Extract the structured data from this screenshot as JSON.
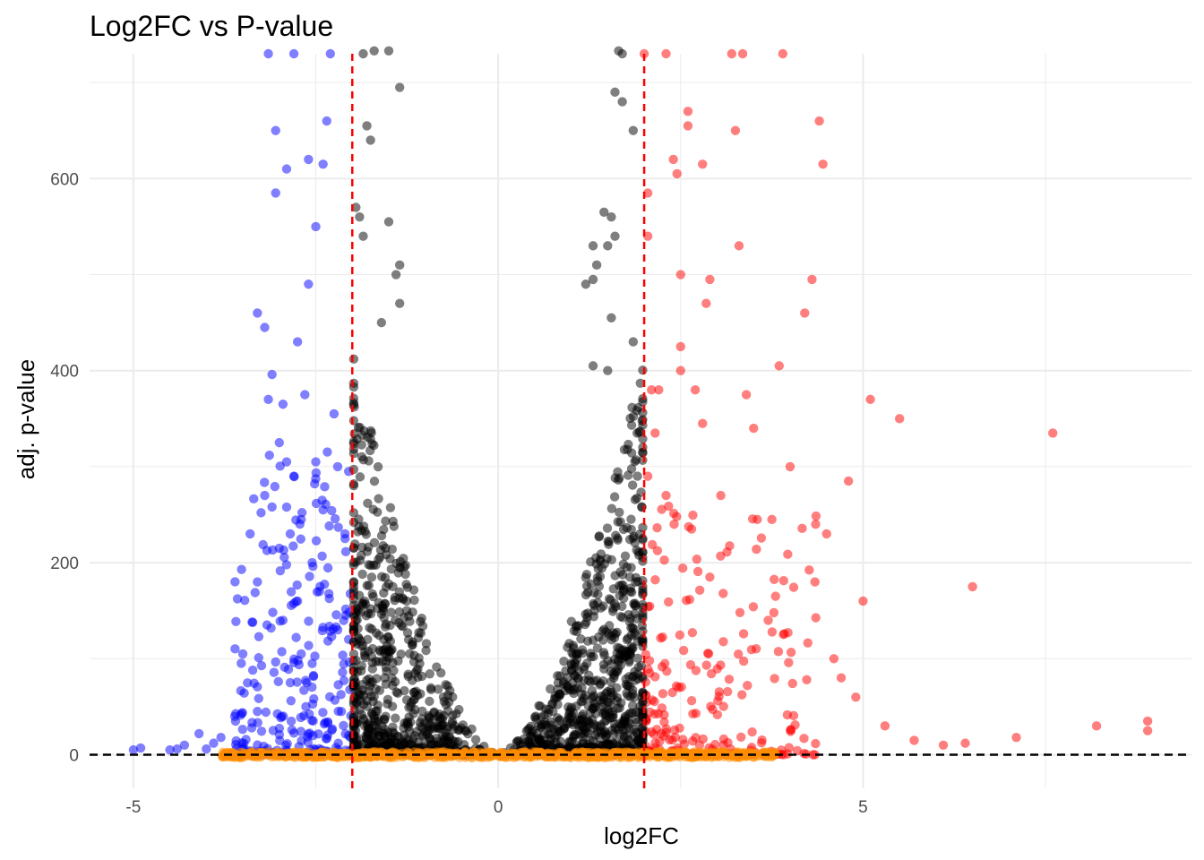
{
  "chart_data": {
    "type": "scatter",
    "title": "Log2FC vs P-value",
    "xlabel": "log2FC",
    "ylabel": "adj. p-value",
    "xlim": [
      -5.6,
      9.5
    ],
    "ylim": [
      -35,
      730
    ],
    "x_ticks": [
      -5,
      0,
      5
    ],
    "x_tick_labels": [
      "-5",
      "0",
      "5"
    ],
    "y_ticks": [
      0,
      200,
      400,
      600
    ],
    "y_tick_labels": [
      "0",
      "200",
      "400",
      "600"
    ],
    "grid": true,
    "legend": "none",
    "reference_lines": {
      "vertical_dashed_red": [
        -2,
        2
      ],
      "horizontal_dashed_black": 0
    },
    "colors": {
      "down_regulated": "#0000ff",
      "up_regulated": "#ff0000",
      "not_significant": "#000000",
      "low_pvalue": "#ff8c00",
      "threshold_line": "#ff0000",
      "zero_line": "#000000",
      "grid": "#ebebeb"
    },
    "series": [
      {
        "color_key": "down_regulated",
        "points": [
          [
            -5.0,
            5
          ],
          [
            -4.9,
            7
          ],
          [
            -4.5,
            5
          ],
          [
            -4.4,
            6
          ],
          [
            -4.3,
            10
          ],
          [
            -4.1,
            22
          ],
          [
            -4.0,
            6
          ],
          [
            -3.9,
            12
          ],
          [
            -3.8,
            18
          ],
          [
            -3.6,
            35
          ],
          [
            -3.5,
            8
          ],
          [
            -3.5,
            105
          ],
          [
            -3.4,
            230
          ],
          [
            -3.3,
            45
          ],
          [
            -3.3,
            180
          ],
          [
            -3.3,
            460
          ],
          [
            -3.25,
            252
          ],
          [
            -3.2,
            270
          ],
          [
            -3.2,
            445
          ],
          [
            -3.15,
            370
          ],
          [
            -3.15,
            730
          ],
          [
            -3.1,
            258
          ],
          [
            -3.1,
            396
          ],
          [
            -3.05,
            585
          ],
          [
            -3.05,
            650
          ],
          [
            -3.0,
            325
          ],
          [
            -3.0,
            215
          ],
          [
            -2.95,
            140
          ],
          [
            -2.95,
            365
          ],
          [
            -2.9,
            305
          ],
          [
            -2.9,
            610
          ],
          [
            -2.85,
            230
          ],
          [
            -2.85,
            75
          ],
          [
            -2.8,
            730
          ],
          [
            -2.8,
            290
          ],
          [
            -2.75,
            430
          ],
          [
            -2.75,
            160
          ],
          [
            -2.7,
            245
          ],
          [
            -2.7,
            105
          ],
          [
            -2.65,
            375
          ],
          [
            -2.6,
            490
          ],
          [
            -2.6,
            620
          ],
          [
            -2.55,
            95
          ],
          [
            -2.55,
            200
          ],
          [
            -2.5,
            550
          ],
          [
            -2.5,
            305
          ],
          [
            -2.45,
            170
          ],
          [
            -2.4,
            615
          ],
          [
            -2.4,
            255
          ],
          [
            -2.35,
            660
          ],
          [
            -2.3,
            730
          ],
          [
            -2.25,
            355
          ],
          [
            -2.2,
            300
          ],
          [
            -2.2,
            130
          ],
          [
            -2.15,
            45
          ],
          [
            -2.1,
            230
          ],
          [
            -2.05,
            295
          ],
          [
            -2.05,
            120
          ],
          [
            -2.05,
            20
          ]
        ],
        "jitter_count": 260
      },
      {
        "color_key": "up_regulated",
        "points": [
          [
            2.0,
            730
          ],
          [
            2.05,
            585
          ],
          [
            2.05,
            290
          ],
          [
            2.05,
            540
          ],
          [
            2.1,
            380
          ],
          [
            2.15,
            335
          ],
          [
            2.2,
            380
          ],
          [
            2.3,
            730
          ],
          [
            2.3,
            270
          ],
          [
            2.4,
            620
          ],
          [
            2.45,
            605
          ],
          [
            2.5,
            425
          ],
          [
            2.5,
            400
          ],
          [
            2.5,
            500
          ],
          [
            2.6,
            670
          ],
          [
            2.6,
            655
          ],
          [
            2.65,
            235
          ],
          [
            2.7,
            380
          ],
          [
            2.8,
            615
          ],
          [
            2.8,
            345
          ],
          [
            2.85,
            470
          ],
          [
            2.9,
            495
          ],
          [
            2.9,
            185
          ],
          [
            3.05,
            270
          ],
          [
            3.2,
            730
          ],
          [
            3.25,
            650
          ],
          [
            3.3,
            530
          ],
          [
            3.35,
            730
          ],
          [
            3.4,
            375
          ],
          [
            3.5,
            340
          ],
          [
            3.55,
            245
          ],
          [
            3.7,
            140
          ],
          [
            3.75,
            245
          ],
          [
            3.8,
            165
          ],
          [
            3.85,
            405
          ],
          [
            3.9,
            730
          ],
          [
            4.0,
            300
          ],
          [
            4.2,
            460
          ],
          [
            4.3,
            495
          ],
          [
            4.35,
            240
          ],
          [
            4.4,
            660
          ],
          [
            4.45,
            615
          ],
          [
            4.5,
            230
          ],
          [
            4.6,
            100
          ],
          [
            4.7,
            80
          ],
          [
            4.8,
            285
          ],
          [
            4.9,
            60
          ],
          [
            5.0,
            160
          ],
          [
            5.1,
            370
          ],
          [
            5.3,
            30
          ],
          [
            5.5,
            350
          ],
          [
            5.7,
            15
          ],
          [
            6.1,
            10
          ],
          [
            6.4,
            12
          ],
          [
            6.5,
            175
          ],
          [
            7.1,
            18
          ],
          [
            7.6,
            335
          ],
          [
            8.2,
            30
          ],
          [
            8.9,
            35
          ],
          [
            8.9,
            25
          ]
        ],
        "jitter_count": 230
      },
      {
        "color_key": "not_significant",
        "points": [
          [
            -1.95,
            570
          ],
          [
            -1.9,
            560
          ],
          [
            -1.85,
            540
          ],
          [
            -1.85,
            730
          ],
          [
            -1.8,
            655
          ],
          [
            -1.75,
            640
          ],
          [
            -1.6,
            450
          ],
          [
            -1.5,
            555
          ],
          [
            -1.4,
            500
          ],
          [
            -1.35,
            510
          ],
          [
            -1.35,
            470
          ],
          [
            -1.35,
            695
          ],
          [
            -1.5,
            735
          ],
          [
            -1.7,
            735
          ],
          [
            1.65,
            735
          ],
          [
            1.7,
            730
          ],
          [
            1.6,
            690
          ],
          [
            1.7,
            680
          ],
          [
            1.85,
            650
          ],
          [
            1.45,
            565
          ],
          [
            1.55,
            560
          ],
          [
            1.6,
            540
          ],
          [
            1.5,
            530
          ],
          [
            1.3,
            530
          ],
          [
            1.35,
            510
          ],
          [
            1.2,
            490
          ],
          [
            1.3,
            495
          ],
          [
            1.55,
            455
          ],
          [
            1.85,
            430
          ],
          [
            1.3,
            405
          ],
          [
            1.5,
            400
          ]
        ],
        "jitter_count": 1600
      },
      {
        "color_key": "low_pvalue",
        "points": [],
        "jitter_count": 900
      }
    ]
  }
}
